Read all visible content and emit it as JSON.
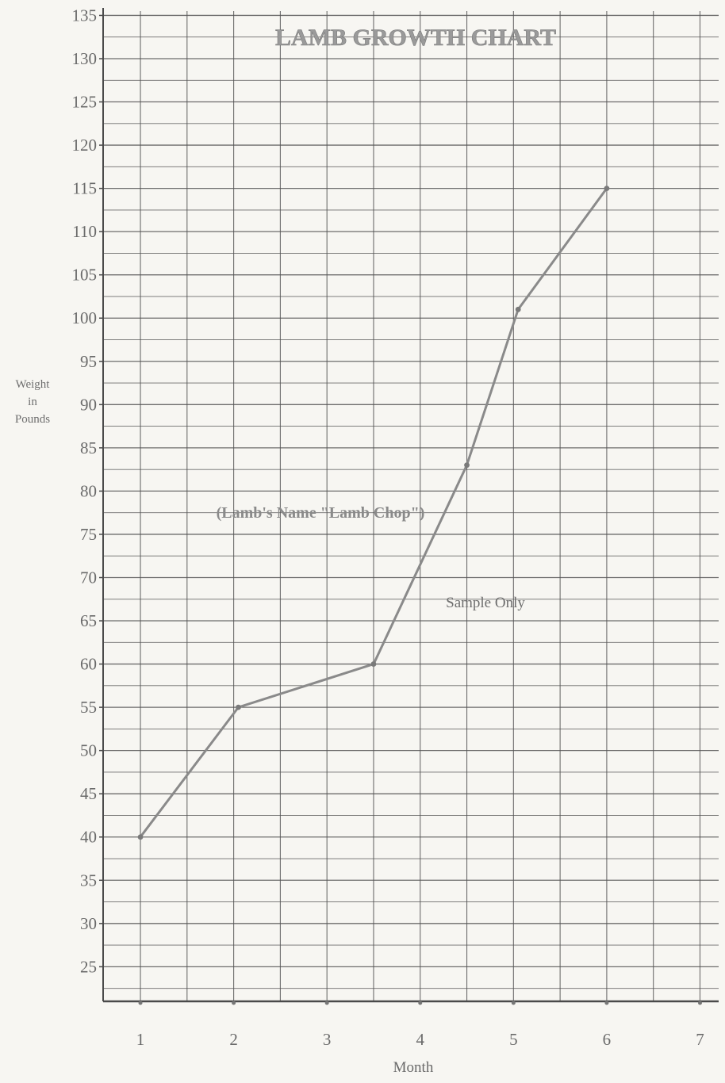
{
  "chart_data": {
    "type": "line",
    "title": "LAMB GROWTH CHART",
    "xlabel": "Month",
    "ylabel_lines": [
      "Weight",
      "in",
      "Pounds"
    ],
    "x_ticks": [
      1,
      2,
      3,
      4,
      5,
      6,
      7
    ],
    "y_ticks": [
      25,
      30,
      35,
      40,
      45,
      50,
      55,
      60,
      65,
      70,
      75,
      80,
      85,
      90,
      95,
      100,
      105,
      110,
      115,
      120,
      125,
      130,
      135
    ],
    "xlim": [
      0.6,
      7.2
    ],
    "ylim": [
      21,
      135.5
    ],
    "grid": true,
    "series": [
      {
        "x": [
          1,
          2.05,
          3.5,
          4.5,
          5.05,
          6
        ],
        "y": [
          40,
          55,
          60,
          83,
          101,
          115
        ]
      }
    ],
    "annotations": [
      "(Lamb's Name \"Lamb Chop\")",
      "Sample Only"
    ],
    "colors": {
      "line": "#8a8a8a",
      "grid": "#555555",
      "text": "#6a6a6a"
    }
  }
}
